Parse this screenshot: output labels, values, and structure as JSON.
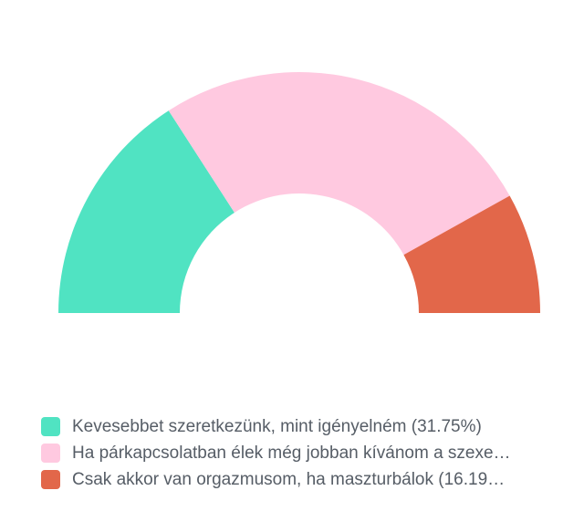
{
  "chart_data": {
    "type": "pie",
    "subtype": "half-donut",
    "start_angle_deg": 180,
    "end_angle_deg": 0,
    "inner_radius_ratio": 0.496,
    "legend_position": "bottom-left",
    "background_color": "#ffffff",
    "legend_text_color": "#565d66",
    "series": [
      {
        "label": "Kevesebbet szeretkezünk, mint igényelném (31.75%)",
        "value": 31.75,
        "value_shown": true,
        "color": "#50e3c2"
      },
      {
        "label": "Ha párkapcsolatban élek még jobban kívánom a szexe…",
        "value": 52.06,
        "value_shown": false,
        "color": "#ffc9e0"
      },
      {
        "label": "Csak akkor van orgazmusom, ha maszturbálok (16.19…",
        "value": 16.19,
        "value_shown": true,
        "color": "#e2674a"
      }
    ]
  }
}
